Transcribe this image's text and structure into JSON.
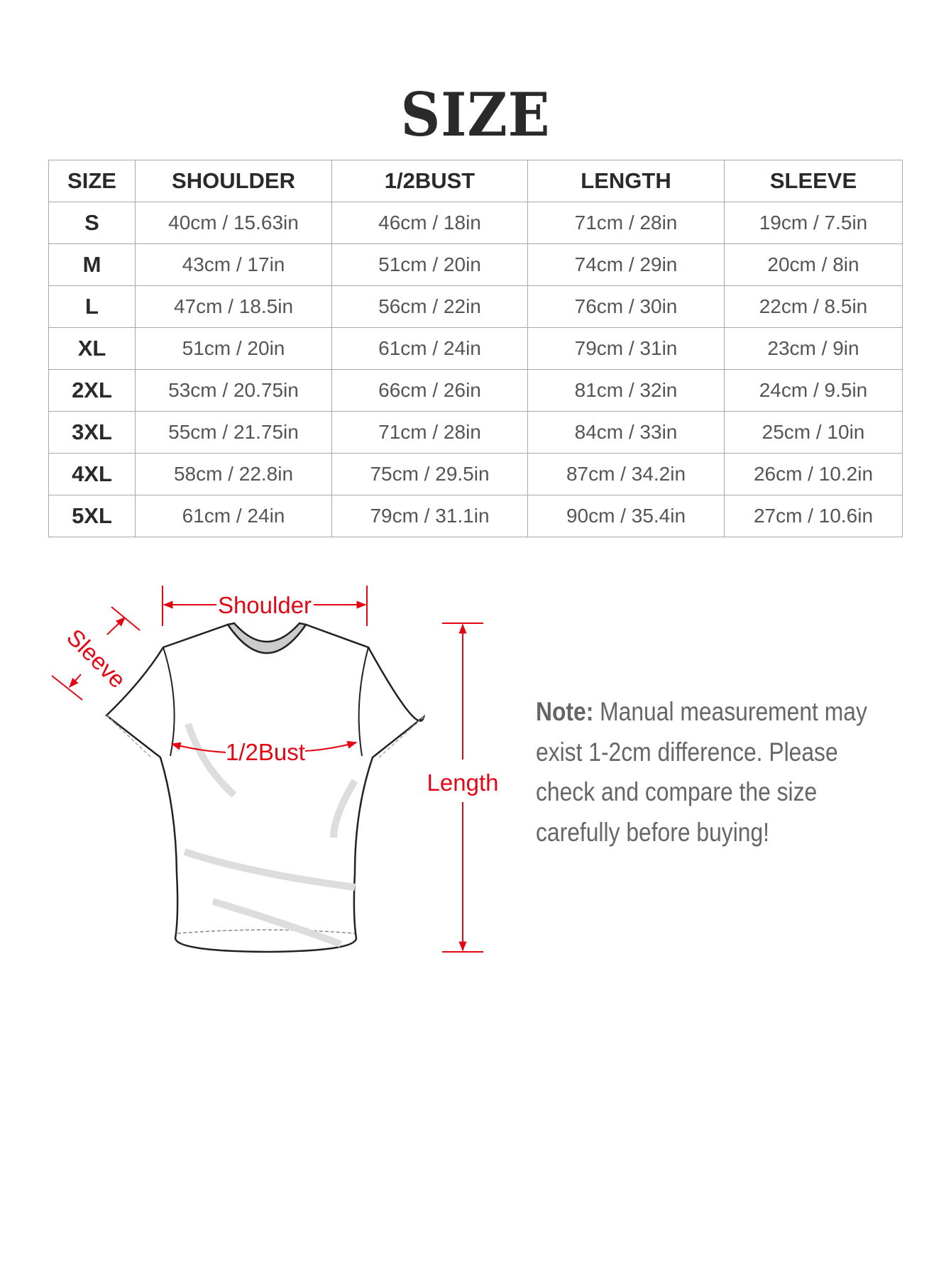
{
  "title": "SIZE",
  "table": {
    "headers": [
      "SIZE",
      "SHOULDER",
      "1/2BUST",
      "LENGTH",
      "SLEEVE"
    ],
    "rows": [
      [
        "S",
        "40cm / 15.63in",
        "46cm / 18in",
        "71cm / 28in",
        "19cm / 7.5in"
      ],
      [
        "M",
        "43cm / 17in",
        "51cm / 20in",
        "74cm / 29in",
        "20cm / 8in"
      ],
      [
        "L",
        "47cm / 18.5in",
        "56cm / 22in",
        "76cm / 30in",
        "22cm / 8.5in"
      ],
      [
        "XL",
        "51cm / 20in",
        "61cm / 24in",
        "79cm / 31in",
        "23cm / 9in"
      ],
      [
        "2XL",
        "53cm / 20.75in",
        "66cm / 26in",
        "81cm / 32in",
        "24cm / 9.5in"
      ],
      [
        "3XL",
        "55cm / 21.75in",
        "71cm / 28in",
        "84cm / 33in",
        "25cm / 10in"
      ],
      [
        "4XL",
        "58cm / 22.8in",
        "75cm / 29.5in",
        "87cm / 34.2in",
        "26cm / 10.2in"
      ],
      [
        "5XL",
        "61cm / 24in",
        "79cm / 31.1in",
        "90cm / 35.4in",
        "27cm / 10.6in"
      ]
    ]
  },
  "diagram": {
    "shoulder_label": "Shoulder",
    "sleeve_label": "Sleeve",
    "bust_label": "1/2Bust",
    "length_label": "Length",
    "accent_color": "#e30613"
  },
  "note": {
    "label": "Note:",
    "lines": [
      "Manual measurement may",
      "exist 1-2cm difference. Please",
      "check and compare the size",
      "carefully before buying!"
    ]
  }
}
